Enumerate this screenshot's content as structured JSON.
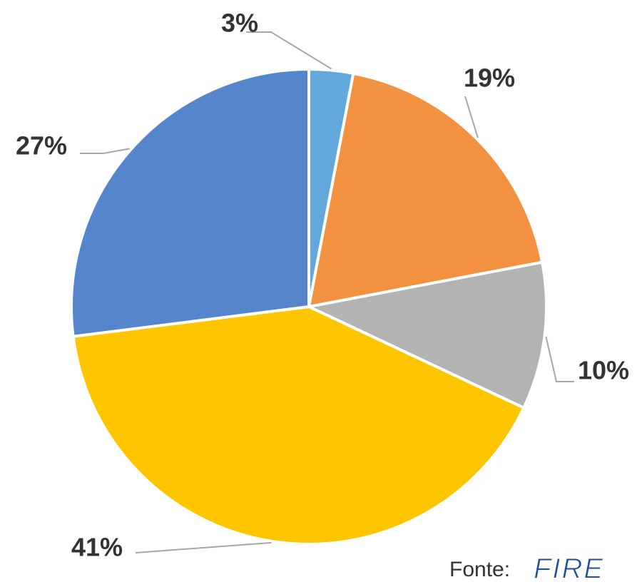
{
  "chart_data": {
    "type": "pie",
    "values": [
      3,
      19,
      10,
      41,
      27
    ],
    "value_labels": [
      "3%",
      "19%",
      "10%",
      "41%",
      "27%"
    ],
    "colors": [
      "#62a8dd",
      "#f2913f",
      "#b3b3b3",
      "#ffc600",
      "#5586cc"
    ],
    "source": "Fonte:",
    "logo": "FIRE"
  }
}
